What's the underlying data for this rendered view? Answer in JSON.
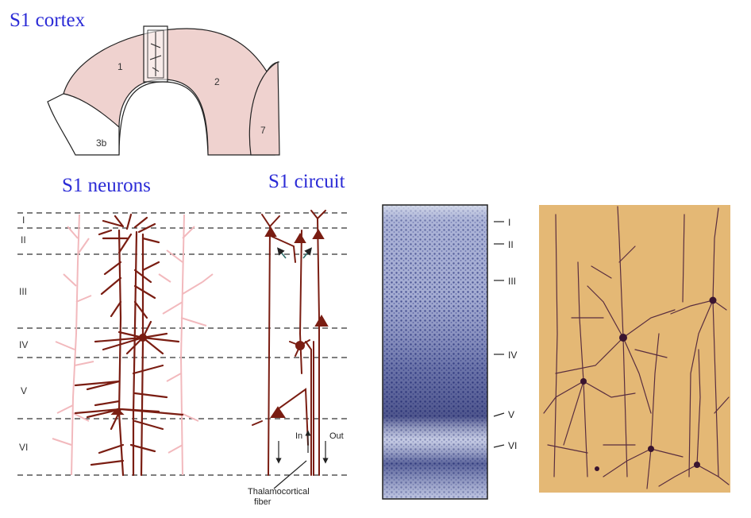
{
  "titles": {
    "cortex": "S1 cortex",
    "neurons": "S1 neurons",
    "circuit": "S1 circuit"
  },
  "cortex_areas": [
    "1",
    "2",
    "3b",
    "7"
  ],
  "layers": [
    "I",
    "II",
    "III",
    "IV",
    "V",
    "VI"
  ],
  "histology_layers": [
    "I",
    "II",
    "III",
    "IV",
    "V",
    "VI"
  ],
  "circuit_labels": {
    "in": "In",
    "out": "Out",
    "fiber": "Thalamocortical\nfiber"
  },
  "colors": {
    "title": "#2b2bd6",
    "cortex_fill": "#efd2cf",
    "neuron": "#7a1d12",
    "neuron_faint": "#f2b9bd",
    "stain_bg": "#e9c27e",
    "stain_cell": "#4a1f3a",
    "nissl": "#3e4a8c"
  }
}
